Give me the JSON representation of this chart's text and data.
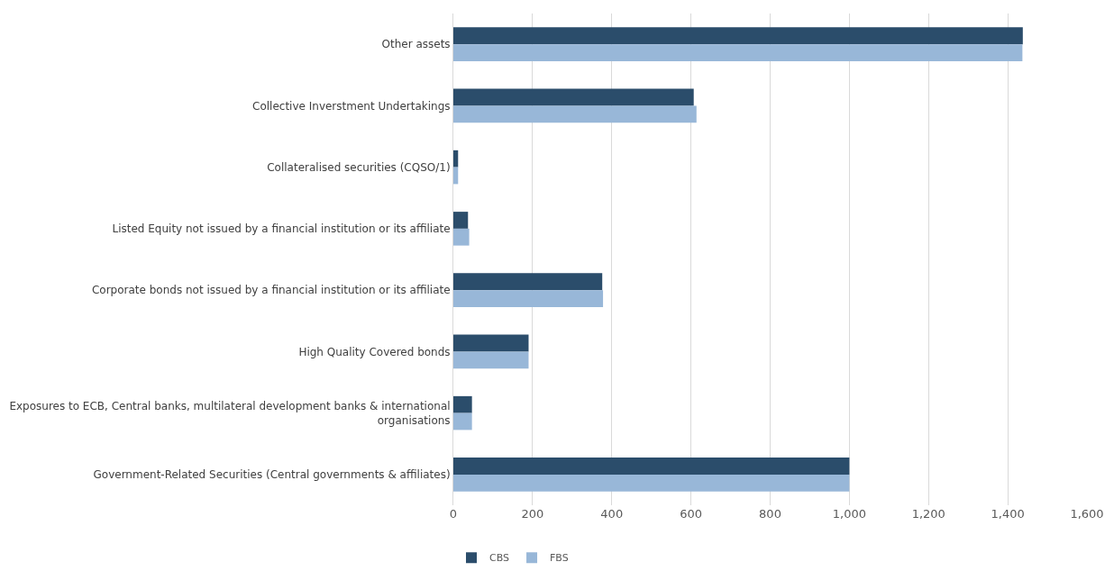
{
  "chart_data": {
    "type": "bar",
    "orientation": "horizontal",
    "categories": [
      "Other assets",
      "Collective Inverstment Undertakings",
      "Collateralised securities (CQSO/1)",
      "Listed Equity not issued by a financial institution or its affiliate",
      "Corporate bonds not issued by a financial institution or its affiliate",
      "High Quality Covered bonds",
      "Exposures to ECB, Central banks, multilateral development banks & international organisations",
      "Government-Related Securities (Central governments & affiliates)"
    ],
    "series": [
      {
        "name": "CBS",
        "color": "#2b4d6b",
        "values": [
          1438,
          607,
          12,
          37,
          376,
          190,
          47,
          1000
        ]
      },
      {
        "name": "FBS",
        "color": "#98b7d8",
        "values": [
          1437,
          614,
          12,
          40,
          378,
          190,
          47,
          1000
        ]
      }
    ],
    "xlim": [
      0,
      1600
    ],
    "xticks": [
      0,
      200,
      400,
      600,
      800,
      {
        "value": 1000,
        "label": "1,000"
      },
      {
        "value": 1200,
        "label": "1,200"
      },
      {
        "value": 1400,
        "label": "1,400"
      },
      {
        "value": 1600,
        "label": "1,600"
      }
    ],
    "grid": "x",
    "legend": "bottom left"
  }
}
